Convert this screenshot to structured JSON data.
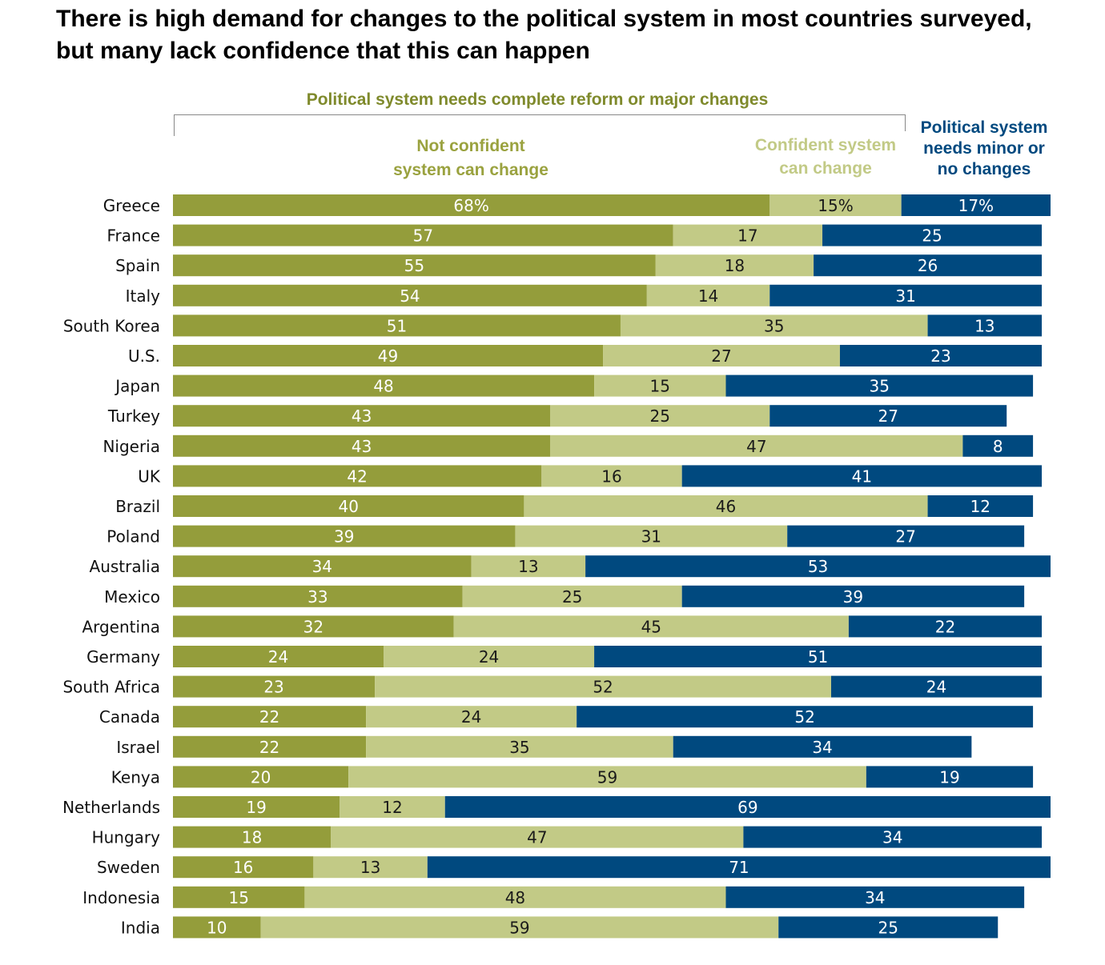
{
  "chart_data": {
    "type": "bar",
    "orientation": "horizontal",
    "stacked": true,
    "title": "There is high demand for changes to the political system in most countries surveyed, but many lack confidence that this can happen",
    "group_label": "Political system needs complete reform or major changes",
    "categories": [
      "Greece",
      "France",
      "Spain",
      "Italy",
      "South Korea",
      "U.S.",
      "Japan",
      "Turkey",
      "Nigeria",
      "UK",
      "Brazil",
      "Poland",
      "Australia",
      "Mexico",
      "Argentina",
      "Germany",
      "South Africa",
      "Canada",
      "Israel",
      "Kenya",
      "Netherlands",
      "Hungary",
      "Sweden",
      "Indonesia",
      "India"
    ],
    "series": [
      {
        "name": "Not confident system can change",
        "color": "#949d3b",
        "label_color": "#ffffff",
        "values": [
          68,
          57,
          55,
          54,
          51,
          49,
          48,
          43,
          43,
          42,
          40,
          39,
          34,
          33,
          32,
          24,
          23,
          22,
          22,
          20,
          19,
          18,
          16,
          15,
          10
        ]
      },
      {
        "name": "Confident system can change",
        "color": "#c2ca86",
        "label_color": "#1a1a1a",
        "values": [
          15,
          17,
          18,
          14,
          35,
          27,
          15,
          25,
          47,
          16,
          46,
          31,
          13,
          25,
          45,
          24,
          52,
          24,
          35,
          59,
          12,
          47,
          13,
          48,
          59
        ]
      },
      {
        "name": "Political system needs minor or no changes",
        "color": "#00497f",
        "label_color": "#ffffff",
        "values": [
          17,
          25,
          26,
          31,
          13,
          23,
          35,
          27,
          8,
          41,
          12,
          27,
          53,
          39,
          22,
          51,
          24,
          52,
          34,
          19,
          69,
          34,
          71,
          34,
          25
        ]
      }
    ],
    "legend_labels": {
      "not_confident": [
        "Not confident",
        "system can change"
      ],
      "confident": [
        "Confident system",
        "can change"
      ],
      "minor": [
        "Political system",
        "needs minor or",
        "no changes"
      ]
    },
    "first_row_suffix": "%",
    "xlim": [
      0,
      100
    ]
  }
}
